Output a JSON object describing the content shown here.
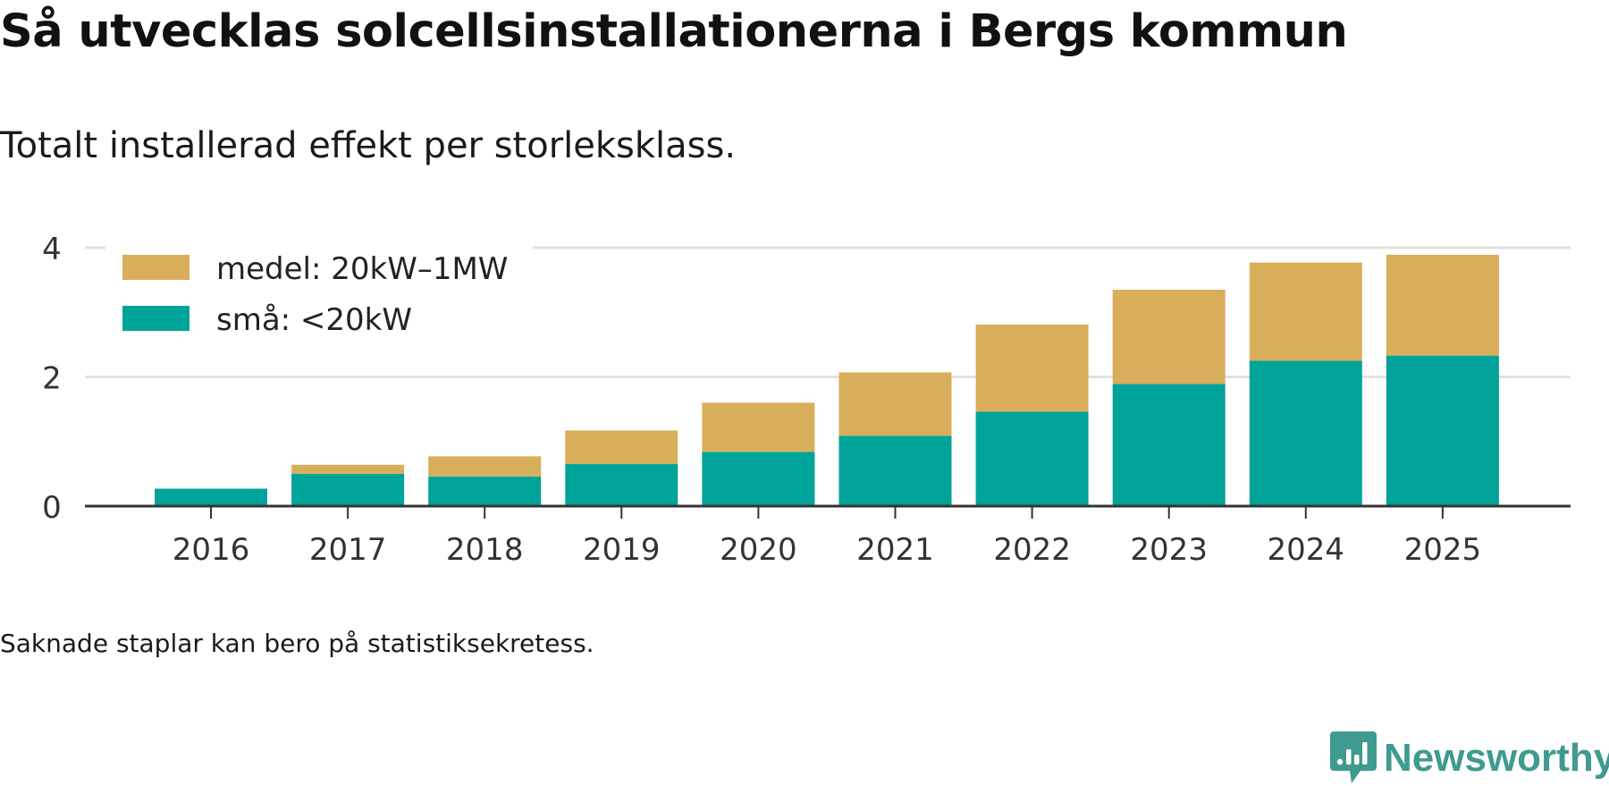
{
  "title": "Så utvecklas solcellsinstallationerna i Bergs kommun",
  "subtitle": "Totalt installerad effekt per storleksklass.",
  "footnote": "Saknade staplar kan bero på statistiksekretess.",
  "brand": "Newsworthy",
  "colors": {
    "small": "#00a39a",
    "medium": "#d9ae5a",
    "grid": "#e1e1e1",
    "axis": "#333333",
    "tick_text": "#333333",
    "brand": "#3f9a8f"
  },
  "chart_data": {
    "type": "bar",
    "stacked": true,
    "title": "Så utvecklas solcellsinstallationerna i Bergs kommun",
    "subtitle": "Totalt installerad effekt per storleksklass.",
    "xlabel": "",
    "ylabel": "",
    "categories": [
      "2016",
      "2017",
      "2018",
      "2019",
      "2020",
      "2021",
      "2022",
      "2023",
      "2024",
      "2025"
    ],
    "series": [
      {
        "name": "små: <20kW",
        "color": "#00a39a",
        "values": [
          0.27,
          0.5,
          0.46,
          0.65,
          0.84,
          1.09,
          1.46,
          1.89,
          2.25,
          2.33
        ]
      },
      {
        "name": "medel: 20kW–1MW",
        "color": "#d9ae5a",
        "values": [
          0.0,
          0.14,
          0.31,
          0.52,
          0.76,
          0.98,
          1.35,
          1.46,
          1.52,
          1.56
        ]
      }
    ],
    "yticks": [
      0,
      2,
      4
    ],
    "ylim": [
      0,
      4
    ],
    "grid": true,
    "legend_position": "top-left",
    "legend_order": [
      "medel: 20kW–1MW",
      "små: <20kW"
    ]
  }
}
